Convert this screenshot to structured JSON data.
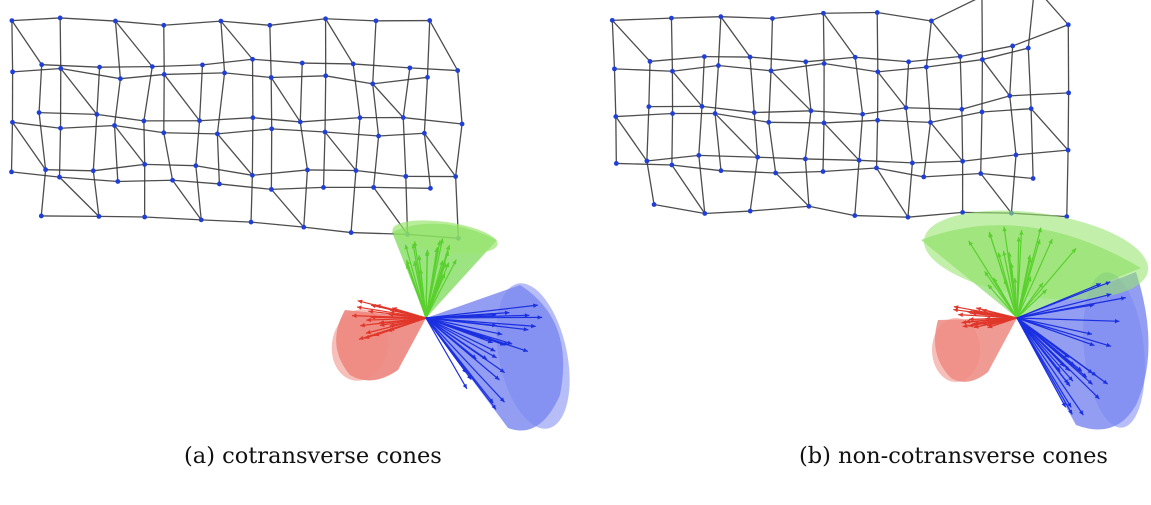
{
  "figure": {
    "panels": [
      {
        "caption": "(a) cotransverse cones",
        "node_color": "#1f3fd6",
        "edge_color": "#3a3a3a",
        "cones": [
          {
            "name": "green-cone",
            "color": "#5ad02e"
          },
          {
            "name": "red-cone",
            "color": "#e0372a"
          },
          {
            "name": "blue-cone",
            "color": "#1a2fe0"
          }
        ]
      },
      {
        "caption": "(b) non-cotransverse cones",
        "node_color": "#1f3fd6",
        "edge_color": "#3a3a3a",
        "cones": [
          {
            "name": "green-cone",
            "color": "#5ad02e"
          },
          {
            "name": "red-cone",
            "color": "#e0372a"
          },
          {
            "name": "blue-cone",
            "color": "#1a2fe0"
          }
        ]
      }
    ]
  }
}
